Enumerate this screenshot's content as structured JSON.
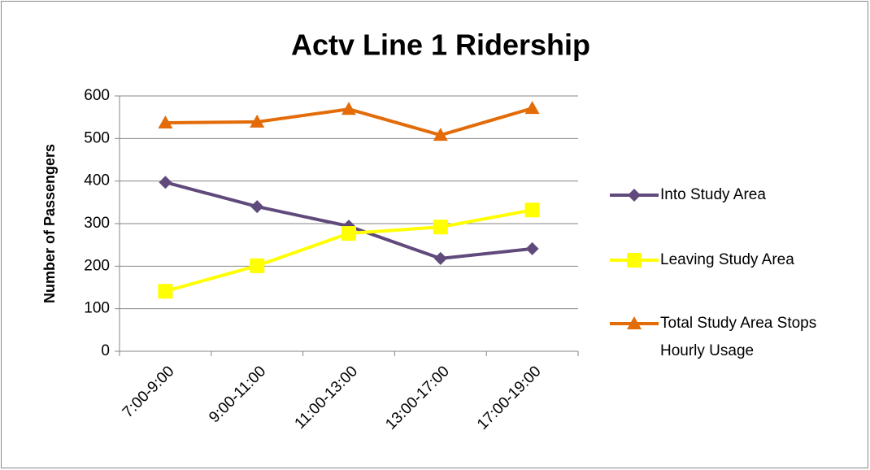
{
  "chart_data": {
    "type": "line",
    "title": "Actv Line 1 Ridership",
    "y_label": "Number of Passengers",
    "categories": [
      "7:00-9:00",
      "9:00-11:00",
      "11:00-13:00",
      "13:00-17:00",
      "17:00-19:00"
    ],
    "series": [
      {
        "name": "Into Study Area",
        "color": "#604a7b",
        "marker": "diamond",
        "values": [
          397,
          340,
          294,
          218,
          241
        ]
      },
      {
        "name": "Leaving Study Area",
        "color": "#ffff00",
        "marker": "square",
        "values": [
          141,
          201,
          277,
          292,
          332
        ]
      },
      {
        "name": "Total Study Area Stops Hourly Usage",
        "color": "#e36c09",
        "marker": "triangle",
        "values": [
          537,
          539,
          569,
          508,
          571
        ]
      }
    ],
    "ylim": [
      0,
      600
    ],
    "yticks": [
      0,
      100,
      200,
      300,
      400,
      500,
      600
    ],
    "grid": true,
    "legend": "right"
  }
}
